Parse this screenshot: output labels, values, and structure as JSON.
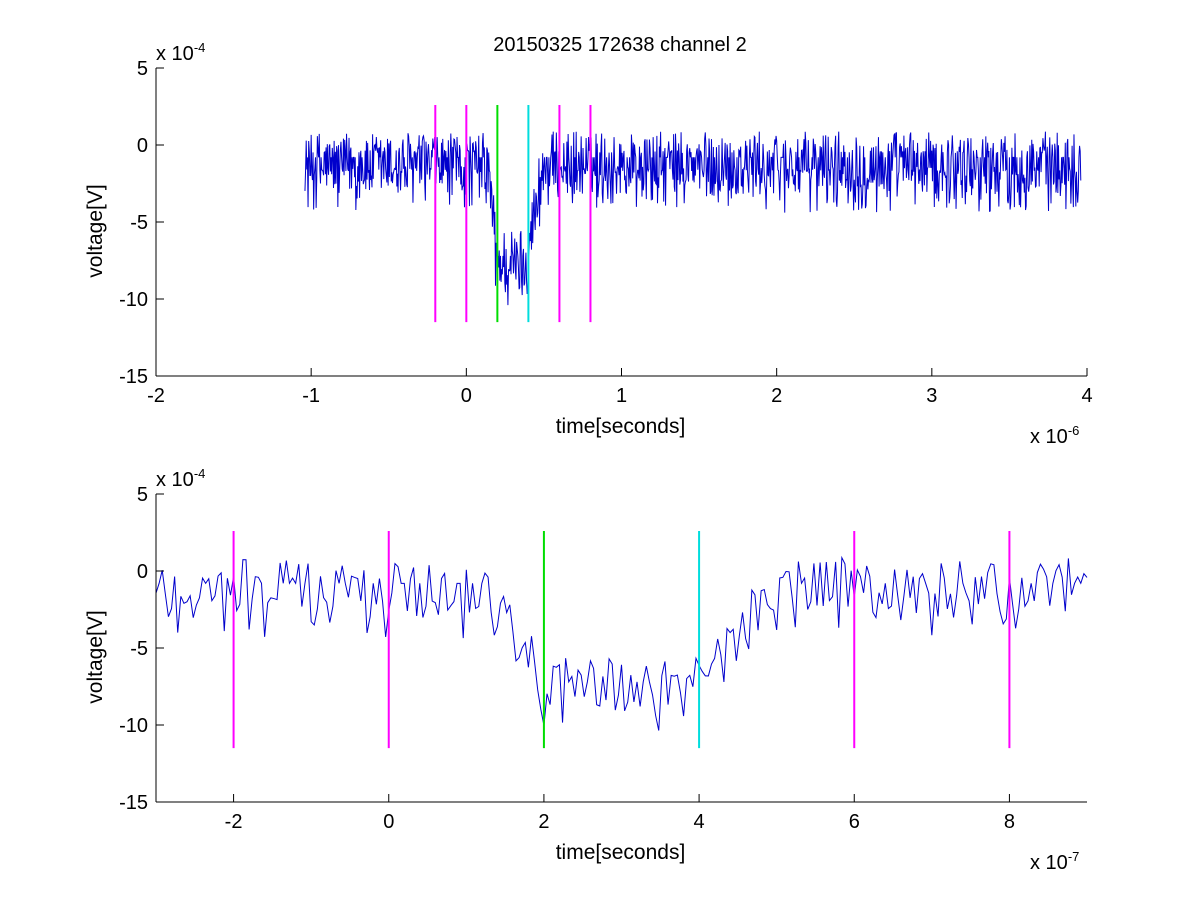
{
  "figure": {
    "title": "20150325 172638 channel 2"
  },
  "chart_data": [
    {
      "type": "line",
      "title": "20150325 172638 channel 2",
      "xlabel": "time[seconds]",
      "ylabel": "voltage[V]",
      "x_exponent_label": "x 10",
      "x_exponent": "-6",
      "y_exponent_label": "x 10",
      "y_exponent": "-4",
      "xlim": [
        -2,
        4
      ],
      "ylim": [
        -15,
        5
      ],
      "xticks": [
        -2,
        -1,
        0,
        1,
        2,
        3,
        4
      ],
      "yticks": [
        -15,
        -10,
        -5,
        0,
        5
      ],
      "xtick_labels": [
        "-2",
        "-1",
        "0",
        "1",
        "2",
        "3",
        "4"
      ],
      "ytick_labels": [
        "-15",
        "-10",
        "-5",
        "0",
        "5"
      ],
      "signal": {
        "color": "#0000cc",
        "x_start": -1.04,
        "x_end": 3.96,
        "step": 0.004,
        "baseline": -0.8,
        "noise": 1.2,
        "dip_start": 0.14,
        "dip_floor_start": 0.2,
        "dip_floor_end": 0.38,
        "dip_end": 0.5,
        "dip_depth": -7.2,
        "ymin_clip": -10.4,
        "ymax_clip": 2.4
      },
      "markers": [
        {
          "x": -0.2,
          "color": "#ff00ff",
          "y0": -11.5,
          "y1": 2.6
        },
        {
          "x": 0.0,
          "color": "#ff00ff",
          "y0": -11.5,
          "y1": 2.6
        },
        {
          "x": 0.2,
          "color": "#00dd00",
          "y0": -11.5,
          "y1": 2.6
        },
        {
          "x": 0.4,
          "color": "#00dddd",
          "y0": -11.5,
          "y1": 2.6
        },
        {
          "x": 0.6,
          "color": "#ff00ff",
          "y0": -11.5,
          "y1": 2.6
        },
        {
          "x": 0.8,
          "color": "#ff00ff",
          "y0": -11.5,
          "y1": 2.6
        }
      ],
      "grid": false,
      "legend": "none"
    },
    {
      "type": "line",
      "title": "",
      "xlabel": "time[seconds]",
      "ylabel": "voltage[V]",
      "x_exponent_label": "x 10",
      "x_exponent": "-7",
      "y_exponent_label": "x 10",
      "y_exponent": "-4",
      "xlim": [
        -3,
        9
      ],
      "ylim": [
        -15,
        5
      ],
      "xticks": [
        -2,
        0,
        2,
        4,
        6,
        8
      ],
      "yticks": [
        -15,
        -10,
        -5,
        0,
        5
      ],
      "xtick_labels": [
        "-2",
        "0",
        "2",
        "4",
        "6",
        "8"
      ],
      "ytick_labels": [
        "-15",
        "-10",
        "-5",
        "0",
        "5"
      ],
      "signal": {
        "color": "#0000cc",
        "x_start": -3.0,
        "x_end": 9.0,
        "step": 0.04,
        "baseline": -0.8,
        "noise": 1.2,
        "dip_start": 1.4,
        "dip_floor_start": 2.0,
        "dip_floor_end": 3.8,
        "dip_end": 5.0,
        "dip_depth": -7.2,
        "ymin_clip": -10.4,
        "ymax_clip": 2.4
      },
      "markers": [
        {
          "x": -2,
          "color": "#ff00ff",
          "y0": -11.5,
          "y1": 2.6
        },
        {
          "x": 0,
          "color": "#ff00ff",
          "y0": -11.5,
          "y1": 2.6
        },
        {
          "x": 2,
          "color": "#00dd00",
          "y0": -11.5,
          "y1": 2.6
        },
        {
          "x": 4,
          "color": "#00dddd",
          "y0": -11.5,
          "y1": 2.6
        },
        {
          "x": 6,
          "color": "#ff00ff",
          "y0": -11.5,
          "y1": 2.6
        },
        {
          "x": 8,
          "color": "#ff00ff",
          "y0": -11.5,
          "y1": 2.6
        }
      ],
      "grid": false,
      "legend": "none"
    }
  ]
}
